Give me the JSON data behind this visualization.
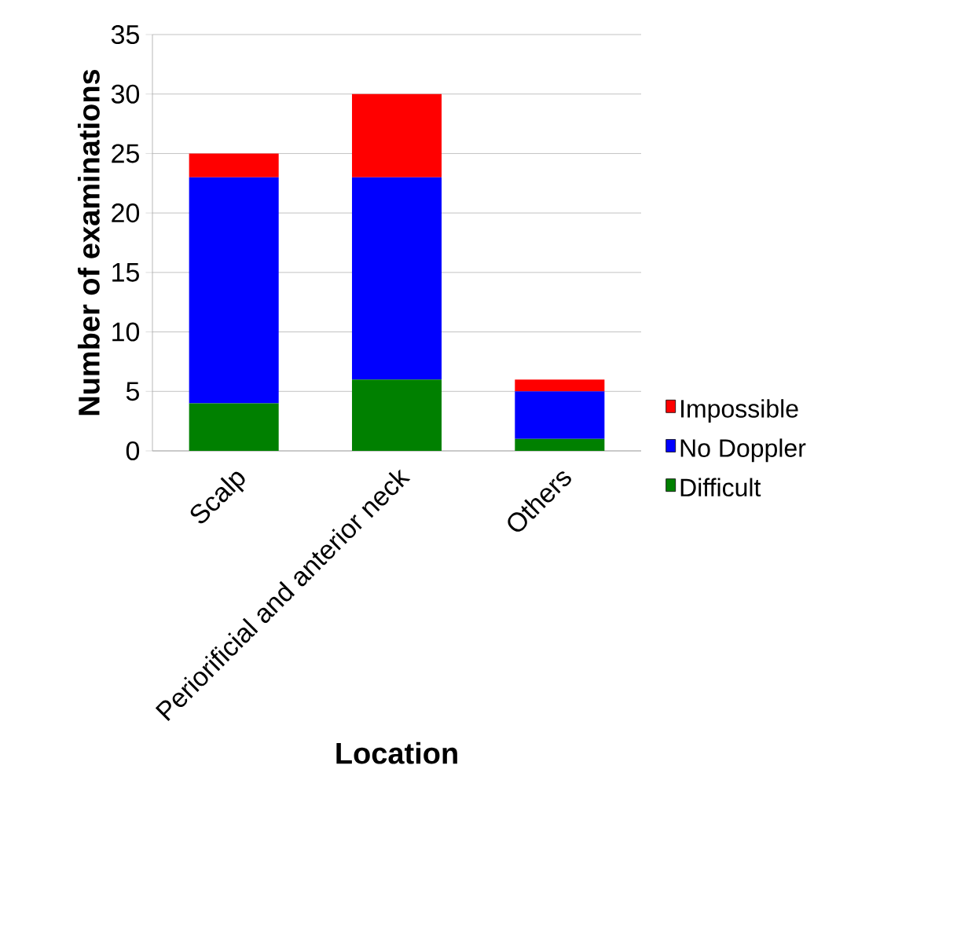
{
  "chart_data": {
    "type": "bar",
    "stacked": true,
    "xlabel": "Location",
    "ylabel": "Number of examinations",
    "categories": [
      "Scalp",
      "Periorificial and anterior neck",
      "Others"
    ],
    "series": [
      {
        "name": "Difficult",
        "color": "#008000",
        "values": [
          4,
          6,
          1
        ]
      },
      {
        "name": "No Doppler",
        "color": "#0000ff",
        "values": [
          19,
          17,
          4
        ]
      },
      {
        "name": "Impossible",
        "color": "#ff0000",
        "values": [
          2,
          7,
          1
        ]
      }
    ],
    "ylim": [
      0,
      35
    ],
    "yticks": [
      0,
      5,
      10,
      15,
      20,
      25,
      30,
      35
    ],
    "grid": "y",
    "legend": "right"
  }
}
